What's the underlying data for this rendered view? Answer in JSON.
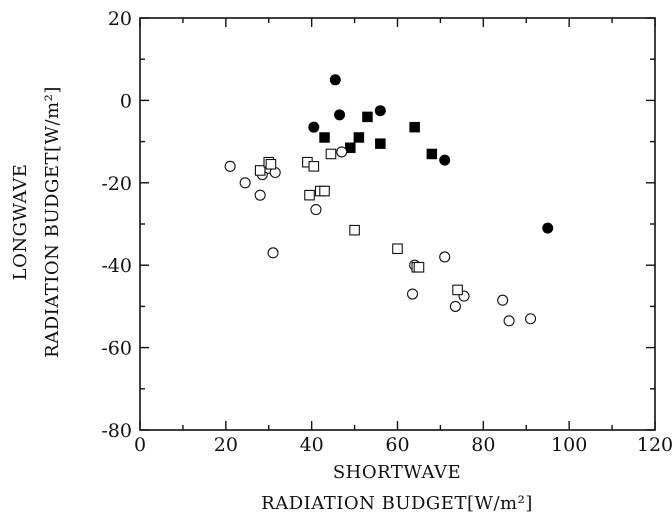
{
  "chart_data": {
    "type": "scatter",
    "title": "",
    "xlabel_line1": "SHORTWAVE",
    "xlabel_line2": "RADIATION BUDGET[W/m²]",
    "ylabel_line1": "LONGWAVE",
    "ylabel_line2": "RADIATION BUDGET[W/m²]",
    "xlim": [
      0,
      120
    ],
    "ylim": [
      -80,
      20
    ],
    "xticks": [
      "0",
      "20",
      "40",
      "60",
      "80",
      "100",
      "120"
    ],
    "yticks": [
      "20",
      "0",
      "-20",
      "-40",
      "-60",
      "-80"
    ],
    "grid": false,
    "series": [
      {
        "marker": "filled-circle",
        "points": [
          [
            40.5,
            -6.5
          ],
          [
            45.5,
            5
          ],
          [
            46.5,
            -3.5
          ],
          [
            56,
            -2.5
          ],
          [
            71,
            -14.5
          ],
          [
            95,
            -31
          ]
        ]
      },
      {
        "marker": "filled-square",
        "points": [
          [
            43,
            -9
          ],
          [
            49,
            -11.5
          ],
          [
            51,
            -9
          ],
          [
            53,
            -4
          ],
          [
            56,
            -10.5
          ],
          [
            64,
            -6.5
          ],
          [
            68,
            -13
          ]
        ]
      },
      {
        "marker": "open-circle",
        "points": [
          [
            21,
            -16
          ],
          [
            24.5,
            -20
          ],
          [
            28,
            -23
          ],
          [
            28.5,
            -18
          ],
          [
            30,
            -16.5
          ],
          [
            31,
            -37
          ],
          [
            31.5,
            -17.5
          ],
          [
            41,
            -26.5
          ],
          [
            47,
            -12.5
          ],
          [
            63.5,
            -47
          ],
          [
            64,
            -40
          ],
          [
            71,
            -38
          ],
          [
            73.5,
            -50
          ],
          [
            75.5,
            -47.5
          ],
          [
            84.5,
            -48.5
          ],
          [
            86,
            -53.5
          ],
          [
            91,
            -53
          ]
        ]
      },
      {
        "marker": "open-square",
        "points": [
          [
            28,
            -17
          ],
          [
            30,
            -15
          ],
          [
            30.5,
            -15.5
          ],
          [
            39,
            -15
          ],
          [
            39.5,
            -23
          ],
          [
            40.5,
            -16
          ],
          [
            42,
            -22
          ],
          [
            43,
            -22
          ],
          [
            44.5,
            -13
          ],
          [
            50,
            -31.5
          ],
          [
            60,
            -36
          ],
          [
            64.5,
            -40.5
          ],
          [
            65,
            -40.5
          ],
          [
            74,
            -46
          ]
        ]
      }
    ]
  }
}
